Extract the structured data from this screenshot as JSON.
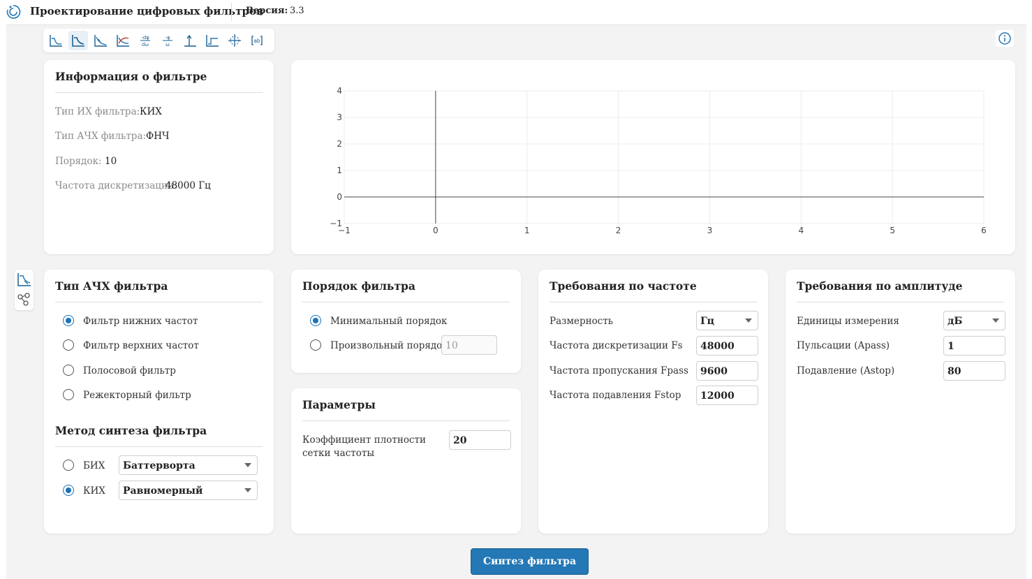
{
  "app": {
    "title": "Проектирование цифровых фильтров",
    "version_label": "Версия:",
    "version": "3.3"
  },
  "filter_info": {
    "title": "Информация о фильтре",
    "rows": [
      {
        "label": "Тип ИХ фильтра:",
        "value": "КИХ"
      },
      {
        "label": "Тип АЧХ фильтра:",
        "value": "ФНЧ"
      },
      {
        "label": "Порядок:",
        "value": "10"
      },
      {
        "label": "Частота дискретизации:",
        "value": "48000 Гц"
      }
    ]
  },
  "chart_data": {
    "type": "line",
    "series": [],
    "xlim": [
      -1,
      6
    ],
    "ylim": [
      -1,
      4
    ],
    "x_ticks": [
      "−1",
      "0",
      "1",
      "2",
      "3",
      "4",
      "5",
      "6"
    ],
    "y_ticks": [
      "4",
      "3",
      "2",
      "1",
      "0",
      "−1"
    ],
    "grid": true
  },
  "response_type": {
    "title": "Тип АЧХ фильтра",
    "options": [
      "Фильтр нижних частот",
      "Фильтр верхних частот",
      "Полосовой фильтр",
      "Режекторный фильтр"
    ],
    "selected": "Фильтр нижних частот"
  },
  "synthesis": {
    "title": "Метод синтеза фильтра",
    "iir": {
      "label": "БИХ",
      "method": "Баттерворта"
    },
    "fir": {
      "label": "КИХ",
      "method": "Равномерный"
    },
    "selected": "КИХ"
  },
  "order": {
    "title": "Порядок фильтра",
    "min_label": "Минимальный порядок",
    "custom_label": "Произвольный порядок",
    "custom_value": "10",
    "selected": "Минимальный порядок"
  },
  "params": {
    "title": "Параметры",
    "density_label_1": "Коэффициент плотности",
    "density_label_2": "сетки частоты",
    "density_value": "20"
  },
  "freq": {
    "title": "Требования по частоте",
    "unit_label": "Размерность",
    "unit_value": "Гц",
    "fs_label": "Частота дискретизации Fs",
    "fs_value": "48000",
    "fpass_label": "Частота пропускания Fpass",
    "fpass_value": "9600",
    "fstop_label": "Частота подавления Fstop",
    "fstop_value": "12000"
  },
  "amp": {
    "title": "Требования по амплитуде",
    "unit_label": "Единицы измерения",
    "unit_value": "дБ",
    "apass_label": "Пульсации (Apass)",
    "apass_value": "1",
    "astop_label": "Подавление (Astop)",
    "astop_value": "80"
  },
  "actions": {
    "synth_label": "Синтез фильтра"
  },
  "toolbar": {
    "icons": [
      "magnitude-response-icon",
      "magnitude-db-icon",
      "attenuation-icon",
      "mag-phase-icon",
      "group-delay-icon",
      "phase-delay-icon",
      "impulse-response-icon",
      "step-response-icon",
      "pole-zero-icon",
      "coefficients-icon"
    ],
    "active_index": 1
  }
}
